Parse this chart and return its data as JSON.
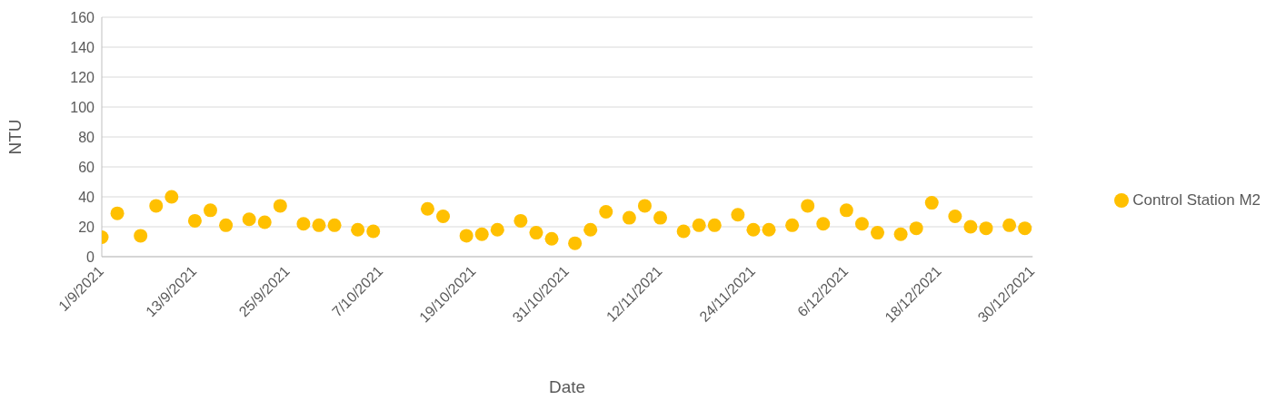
{
  "chart_data": {
    "type": "scatter",
    "xlabel": "Date",
    "ylabel": "NTU",
    "x": [
      "2021-09-01",
      "2021-09-03",
      "2021-09-06",
      "2021-09-08",
      "2021-09-10",
      "2021-09-13",
      "2021-09-15",
      "2021-09-17",
      "2021-09-20",
      "2021-09-22",
      "2021-09-24",
      "2021-09-27",
      "2021-09-29",
      "2021-10-01",
      "2021-10-04",
      "2021-10-06",
      "2021-10-13",
      "2021-10-15",
      "2021-10-18",
      "2021-10-20",
      "2021-10-22",
      "2021-10-25",
      "2021-10-27",
      "2021-10-29",
      "2021-11-01",
      "2021-11-03",
      "2021-11-05",
      "2021-11-08",
      "2021-11-10",
      "2021-11-12",
      "2021-11-15",
      "2021-11-17",
      "2021-11-19",
      "2021-11-22",
      "2021-11-24",
      "2021-11-26",
      "2021-11-29",
      "2021-12-01",
      "2021-12-03",
      "2021-12-06",
      "2021-12-08",
      "2021-12-10",
      "2021-12-13",
      "2021-12-15",
      "2021-12-17",
      "2021-12-20",
      "2021-12-22",
      "2021-12-24",
      "2021-12-27",
      "2021-12-29"
    ],
    "series": [
      {
        "name": "Control Station M2",
        "color": "#ffc000",
        "values": [
          13,
          29,
          14,
          34,
          40,
          24,
          31,
          21,
          25,
          23,
          34,
          22,
          21,
          21,
          18,
          17,
          32,
          27,
          14,
          15,
          18,
          24,
          16,
          12,
          9,
          18,
          30,
          26,
          34,
          26,
          17,
          21,
          21,
          28,
          18,
          18,
          21,
          34,
          22,
          31,
          22,
          16,
          15,
          19,
          36,
          27,
          20,
          19,
          21,
          19
        ]
      }
    ],
    "xlim": [
      "2021-09-01",
      "2021-12-30"
    ],
    "xticks": [
      {
        "value": "2021-09-01",
        "label": "1/9/2021"
      },
      {
        "value": "2021-09-13",
        "label": "13/9/2021"
      },
      {
        "value": "2021-09-25",
        "label": "25/9/2021"
      },
      {
        "value": "2021-10-07",
        "label": "7/10/2021"
      },
      {
        "value": "2021-10-19",
        "label": "19/10/2021"
      },
      {
        "value": "2021-10-31",
        "label": "31/10/2021"
      },
      {
        "value": "2021-11-12",
        "label": "12/11/2021"
      },
      {
        "value": "2021-11-24",
        "label": "24/11/2021"
      },
      {
        "value": "2021-12-06",
        "label": "6/12/2021"
      },
      {
        "value": "2021-12-18",
        "label": "18/12/2021"
      },
      {
        "value": "2021-12-30",
        "label": "30/12/2021"
      }
    ],
    "ylim": [
      0,
      160
    ],
    "yticks": [
      0,
      20,
      40,
      60,
      80,
      100,
      120,
      140,
      160
    ],
    "grid": "y",
    "legend": "right",
    "marker": "circle"
  }
}
